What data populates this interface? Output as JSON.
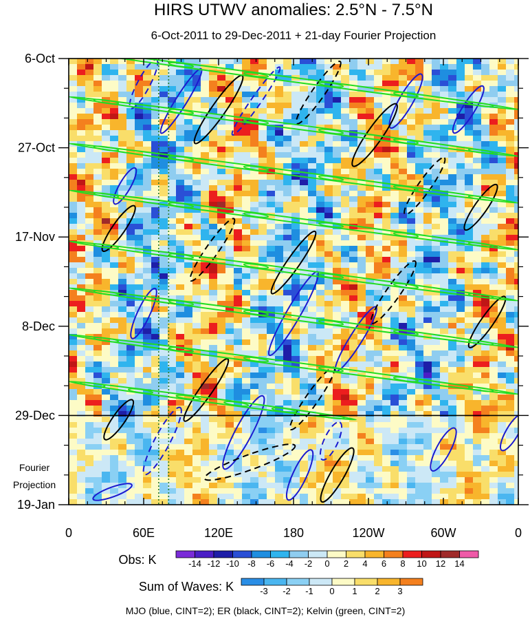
{
  "chart_data": {
    "type": "heatmap",
    "title": "HIRS UTWV anomalies: 2.5°N - 7.5°N",
    "subtitle": "6-Oct-2011 to 29-Dec-2011 + 21-day Fourier Projection",
    "x_ticks": [
      "0",
      "60E",
      "120E",
      "180",
      "120W",
      "60W",
      "0"
    ],
    "x_tick_values": [
      0,
      60,
      120,
      180,
      240,
      300,
      360
    ],
    "xlim": [
      0,
      360
    ],
    "y_ticks": [
      "6-Oct",
      "27-Oct",
      "17-Nov",
      "8-Dec",
      "29-Dec",
      "19-Jan"
    ],
    "y_tick_days": [
      0,
      21,
      42,
      63,
      84,
      105
    ],
    "ylim_days": [
      0,
      105
    ],
    "projection_start_day": 84,
    "projection_label": [
      "Fourier",
      "Projection"
    ],
    "reference_longitudes": [
      72,
      80
    ],
    "obs_colorbar": {
      "label": "Obs: K",
      "labels": [
        "-14",
        "-12",
        "-10",
        "-8",
        "-6",
        "-4",
        "-2",
        "0",
        "2",
        "4",
        "6",
        "8",
        "10",
        "12",
        "14"
      ],
      "colors": [
        "#7a2bd8",
        "#4b1ec6",
        "#1e1ea8",
        "#2a4fd6",
        "#1f8ee0",
        "#2fb4ee",
        "#8fcdf0",
        "#cbe8f6",
        "#fdfbc6",
        "#f9de6a",
        "#f8b52c",
        "#f4801e",
        "#ec1e1e",
        "#c01616",
        "#a02a2a",
        "#ef5aa8"
      ]
    },
    "waves_colorbar": {
      "label": "Sum of Waves: K",
      "labels": [
        "-3",
        "-2",
        "-1",
        "0",
        "1",
        "2",
        "3"
      ],
      "colors": [
        "#2a8ee6",
        "#4ab6f0",
        "#8ad0f4",
        "#cce8f6",
        "#fdfbc6",
        "#f9de6a",
        "#f8b52c",
        "#f4801e"
      ]
    },
    "legend_text": "MJO (blue, CINT=2); ER (black, CINT=2); Kelvin (green, CINT=2)",
    "series": [
      {
        "name": "MJO",
        "color": "#1a1ad0",
        "cint": 2,
        "contours": [
          {
            "lon": 60,
            "day": 6,
            "rx": 40,
            "ry": 9,
            "angle": -62,
            "dashed": true
          },
          {
            "lon": 90,
            "day": 10,
            "rx": 55,
            "ry": 8,
            "angle": -58,
            "dashed": false
          },
          {
            "lon": 150,
            "day": 10,
            "rx": 60,
            "ry": 7,
            "angle": -55,
            "dashed": true
          },
          {
            "lon": 270,
            "day": 10,
            "rx": 45,
            "ry": 10,
            "angle": -60,
            "dashed": false
          },
          {
            "lon": 320,
            "day": 12,
            "rx": 40,
            "ry": 9,
            "angle": -58,
            "dashed": false
          },
          {
            "lon": 45,
            "day": 30,
            "rx": 30,
            "ry": 8,
            "angle": -60,
            "dashed": false
          },
          {
            "lon": 60,
            "day": 60,
            "rx": 40,
            "ry": 9,
            "angle": -65,
            "dashed": false
          },
          {
            "lon": 180,
            "day": 60,
            "rx": 70,
            "ry": 10,
            "angle": -60,
            "dashed": false
          },
          {
            "lon": 230,
            "day": 66,
            "rx": 55,
            "ry": 9,
            "angle": -58,
            "dashed": false
          },
          {
            "lon": 140,
            "day": 88,
            "rx": 60,
            "ry": 12,
            "angle": -62,
            "dashed": false
          },
          {
            "lon": 75,
            "day": 90,
            "rx": 55,
            "ry": 11,
            "angle": -62,
            "dashed": true
          },
          {
            "lon": 210,
            "day": 90,
            "rx": 30,
            "ry": 10,
            "angle": -65,
            "dashed": true
          },
          {
            "lon": 300,
            "day": 92,
            "rx": 35,
            "ry": 10,
            "angle": -62,
            "dashed": false
          },
          {
            "lon": 355,
            "day": 88,
            "rx": 30,
            "ry": 9,
            "angle": -60,
            "dashed": false
          },
          {
            "lon": 35,
            "day": 102,
            "rx": 30,
            "ry": 7,
            "angle": -20,
            "dashed": false
          },
          {
            "lon": 185,
            "day": 98,
            "rx": 40,
            "ry": 10,
            "angle": -65,
            "dashed": false
          }
        ]
      },
      {
        "name": "ER",
        "color": "#000000",
        "cint": 2,
        "contours": [
          {
            "lon": 120,
            "day": 12,
            "rx": 60,
            "ry": 10,
            "angle": -55,
            "dashed": false
          },
          {
            "lon": 200,
            "day": 8,
            "rx": 55,
            "ry": 9,
            "angle": -55,
            "dashed": true
          },
          {
            "lon": 245,
            "day": 18,
            "rx": 55,
            "ry": 11,
            "angle": -55,
            "dashed": false
          },
          {
            "lon": 285,
            "day": 30,
            "rx": 50,
            "ry": 9,
            "angle": -55,
            "dashed": true
          },
          {
            "lon": 330,
            "day": 35,
            "rx": 40,
            "ry": 9,
            "angle": -55,
            "dashed": false
          },
          {
            "lon": 40,
            "day": 40,
            "rx": 40,
            "ry": 9,
            "angle": -55,
            "dashed": false
          },
          {
            "lon": 115,
            "day": 45,
            "rx": 55,
            "ry": 9,
            "angle": -55,
            "dashed": true
          },
          {
            "lon": 180,
            "day": 48,
            "rx": 55,
            "ry": 9,
            "angle": -55,
            "dashed": false
          },
          {
            "lon": 260,
            "day": 55,
            "rx": 55,
            "ry": 10,
            "angle": -55,
            "dashed": true
          },
          {
            "lon": 335,
            "day": 62,
            "rx": 45,
            "ry": 9,
            "angle": -55,
            "dashed": false
          },
          {
            "lon": 110,
            "day": 78,
            "rx": 55,
            "ry": 9,
            "angle": -55,
            "dashed": false
          },
          {
            "lon": 195,
            "day": 80,
            "rx": 55,
            "ry": 9,
            "angle": -55,
            "dashed": true
          },
          {
            "lon": 40,
            "day": 85,
            "rx": 35,
            "ry": 9,
            "angle": -55,
            "dashed": false
          },
          {
            "lon": 145,
            "day": 95,
            "rx": 70,
            "ry": 11,
            "angle": -20,
            "dashed": true
          },
          {
            "lon": 215,
            "day": 98,
            "rx": 45,
            "ry": 10,
            "angle": -60,
            "dashed": false
          }
        ]
      },
      {
        "name": "Kelvin",
        "color": "#22dd22",
        "cint": 2,
        "bands": [
          {
            "lon0": 0,
            "day0": -2,
            "lon1": 360,
            "day1": 12
          },
          {
            "lon0": 0,
            "day0": 9,
            "lon1": 360,
            "day1": 23
          },
          {
            "lon0": 0,
            "day0": 20,
            "lon1": 360,
            "day1": 34
          },
          {
            "lon0": 0,
            "day0": 31,
            "lon1": 360,
            "day1": 45
          },
          {
            "lon0": 0,
            "day0": 43,
            "lon1": 360,
            "day1": 57
          },
          {
            "lon0": 0,
            "day0": 54,
            "lon1": 360,
            "day1": 68
          },
          {
            "lon0": 0,
            "day0": 65,
            "lon1": 360,
            "day1": 79
          },
          {
            "lon0": 0,
            "day0": 76,
            "lon1": 230,
            "day1": 85
          }
        ]
      }
    ]
  }
}
